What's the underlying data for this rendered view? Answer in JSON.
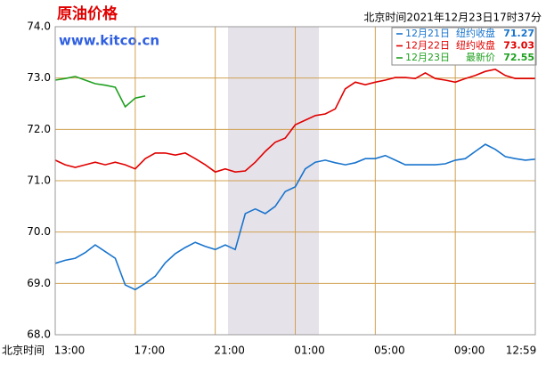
{
  "chart_data": {
    "type": "line",
    "title": "原油价格",
    "subtitle": "www.kitco.cn",
    "timestamp": "北京时间2021年12月23日17时37分",
    "xlabel": "北京时间",
    "categories": [
      "13:00",
      null,
      null,
      null,
      null,
      null,
      null,
      null,
      "17:00",
      null,
      null,
      null,
      null,
      null,
      null,
      null,
      "21:00",
      null,
      null,
      null,
      null,
      null,
      null,
      null,
      "01:00",
      null,
      null,
      null,
      null,
      null,
      null,
      null,
      "05:00",
      null,
      null,
      null,
      null,
      null,
      null,
      null,
      "09:00",
      null,
      null,
      null,
      null,
      null,
      null,
      null,
      "12:59"
    ],
    "series": [
      {
        "name": "12月21日",
        "label": "纽约收盘",
        "last": 71.27,
        "color": "#1874cd",
        "values": [
          69.39,
          69.45,
          69.49,
          69.6,
          69.75,
          69.62,
          69.49,
          68.97,
          68.88,
          69.0,
          69.14,
          69.4,
          69.58,
          69.7,
          69.8,
          69.72,
          69.66,
          69.75,
          69.66,
          70.36,
          70.45,
          70.36,
          70.5,
          70.79,
          70.88,
          71.23,
          71.36,
          71.4,
          71.35,
          71.31,
          71.35,
          71.43,
          71.43,
          71.49,
          71.4,
          71.31,
          71.31,
          71.31,
          71.31,
          71.33,
          71.4,
          71.43,
          71.57,
          71.71,
          71.61,
          71.47,
          71.43,
          71.4,
          71.42
        ]
      },
      {
        "name": "12月22日",
        "label": "纽约收盘",
        "last": 73.03,
        "color": "#e00000",
        "values": [
          71.4,
          71.31,
          71.26,
          71.31,
          71.36,
          71.31,
          71.36,
          71.31,
          71.23,
          71.43,
          71.54,
          71.54,
          71.5,
          71.54,
          71.43,
          71.31,
          71.17,
          71.23,
          71.17,
          71.19,
          71.36,
          71.57,
          71.75,
          71.83,
          72.09,
          72.18,
          72.27,
          72.3,
          72.4,
          72.79,
          72.92,
          72.87,
          72.92,
          72.96,
          73.01,
          73.01,
          72.99,
          73.1,
          72.99,
          72.96,
          72.92,
          72.99,
          73.05,
          73.13,
          73.17,
          73.05,
          72.99,
          72.99,
          72.99
        ]
      },
      {
        "name": "12月23日",
        "label": "最新价",
        "last": 72.55,
        "color": "#20a020",
        "values": [
          72.96,
          72.99,
          73.03,
          72.96,
          72.89,
          72.86,
          72.82,
          72.44,
          72.61,
          72.65,
          null,
          null,
          null,
          null,
          null,
          null,
          null,
          null,
          null,
          null,
          null,
          null,
          null,
          null,
          null,
          null,
          null,
          null,
          null,
          null,
          null,
          null,
          null,
          null,
          null,
          null,
          null,
          null,
          null,
          null,
          null,
          null,
          null,
          null,
          null,
          null,
          null,
          null,
          null
        ]
      }
    ],
    "ylim": [
      68,
      74
    ],
    "yticks": [
      {
        "value": 68,
        "label": "68.0"
      },
      {
        "value": 69,
        "label": "69.0"
      },
      {
        "value": 70,
        "label": "70.0"
      },
      {
        "value": 71,
        "label": "71.0"
      },
      {
        "value": 72,
        "label": "72.0"
      },
      {
        "value": 73,
        "label": "73.0"
      },
      {
        "value": 74,
        "label": "74.0"
      }
    ],
    "grid": true
  }
}
